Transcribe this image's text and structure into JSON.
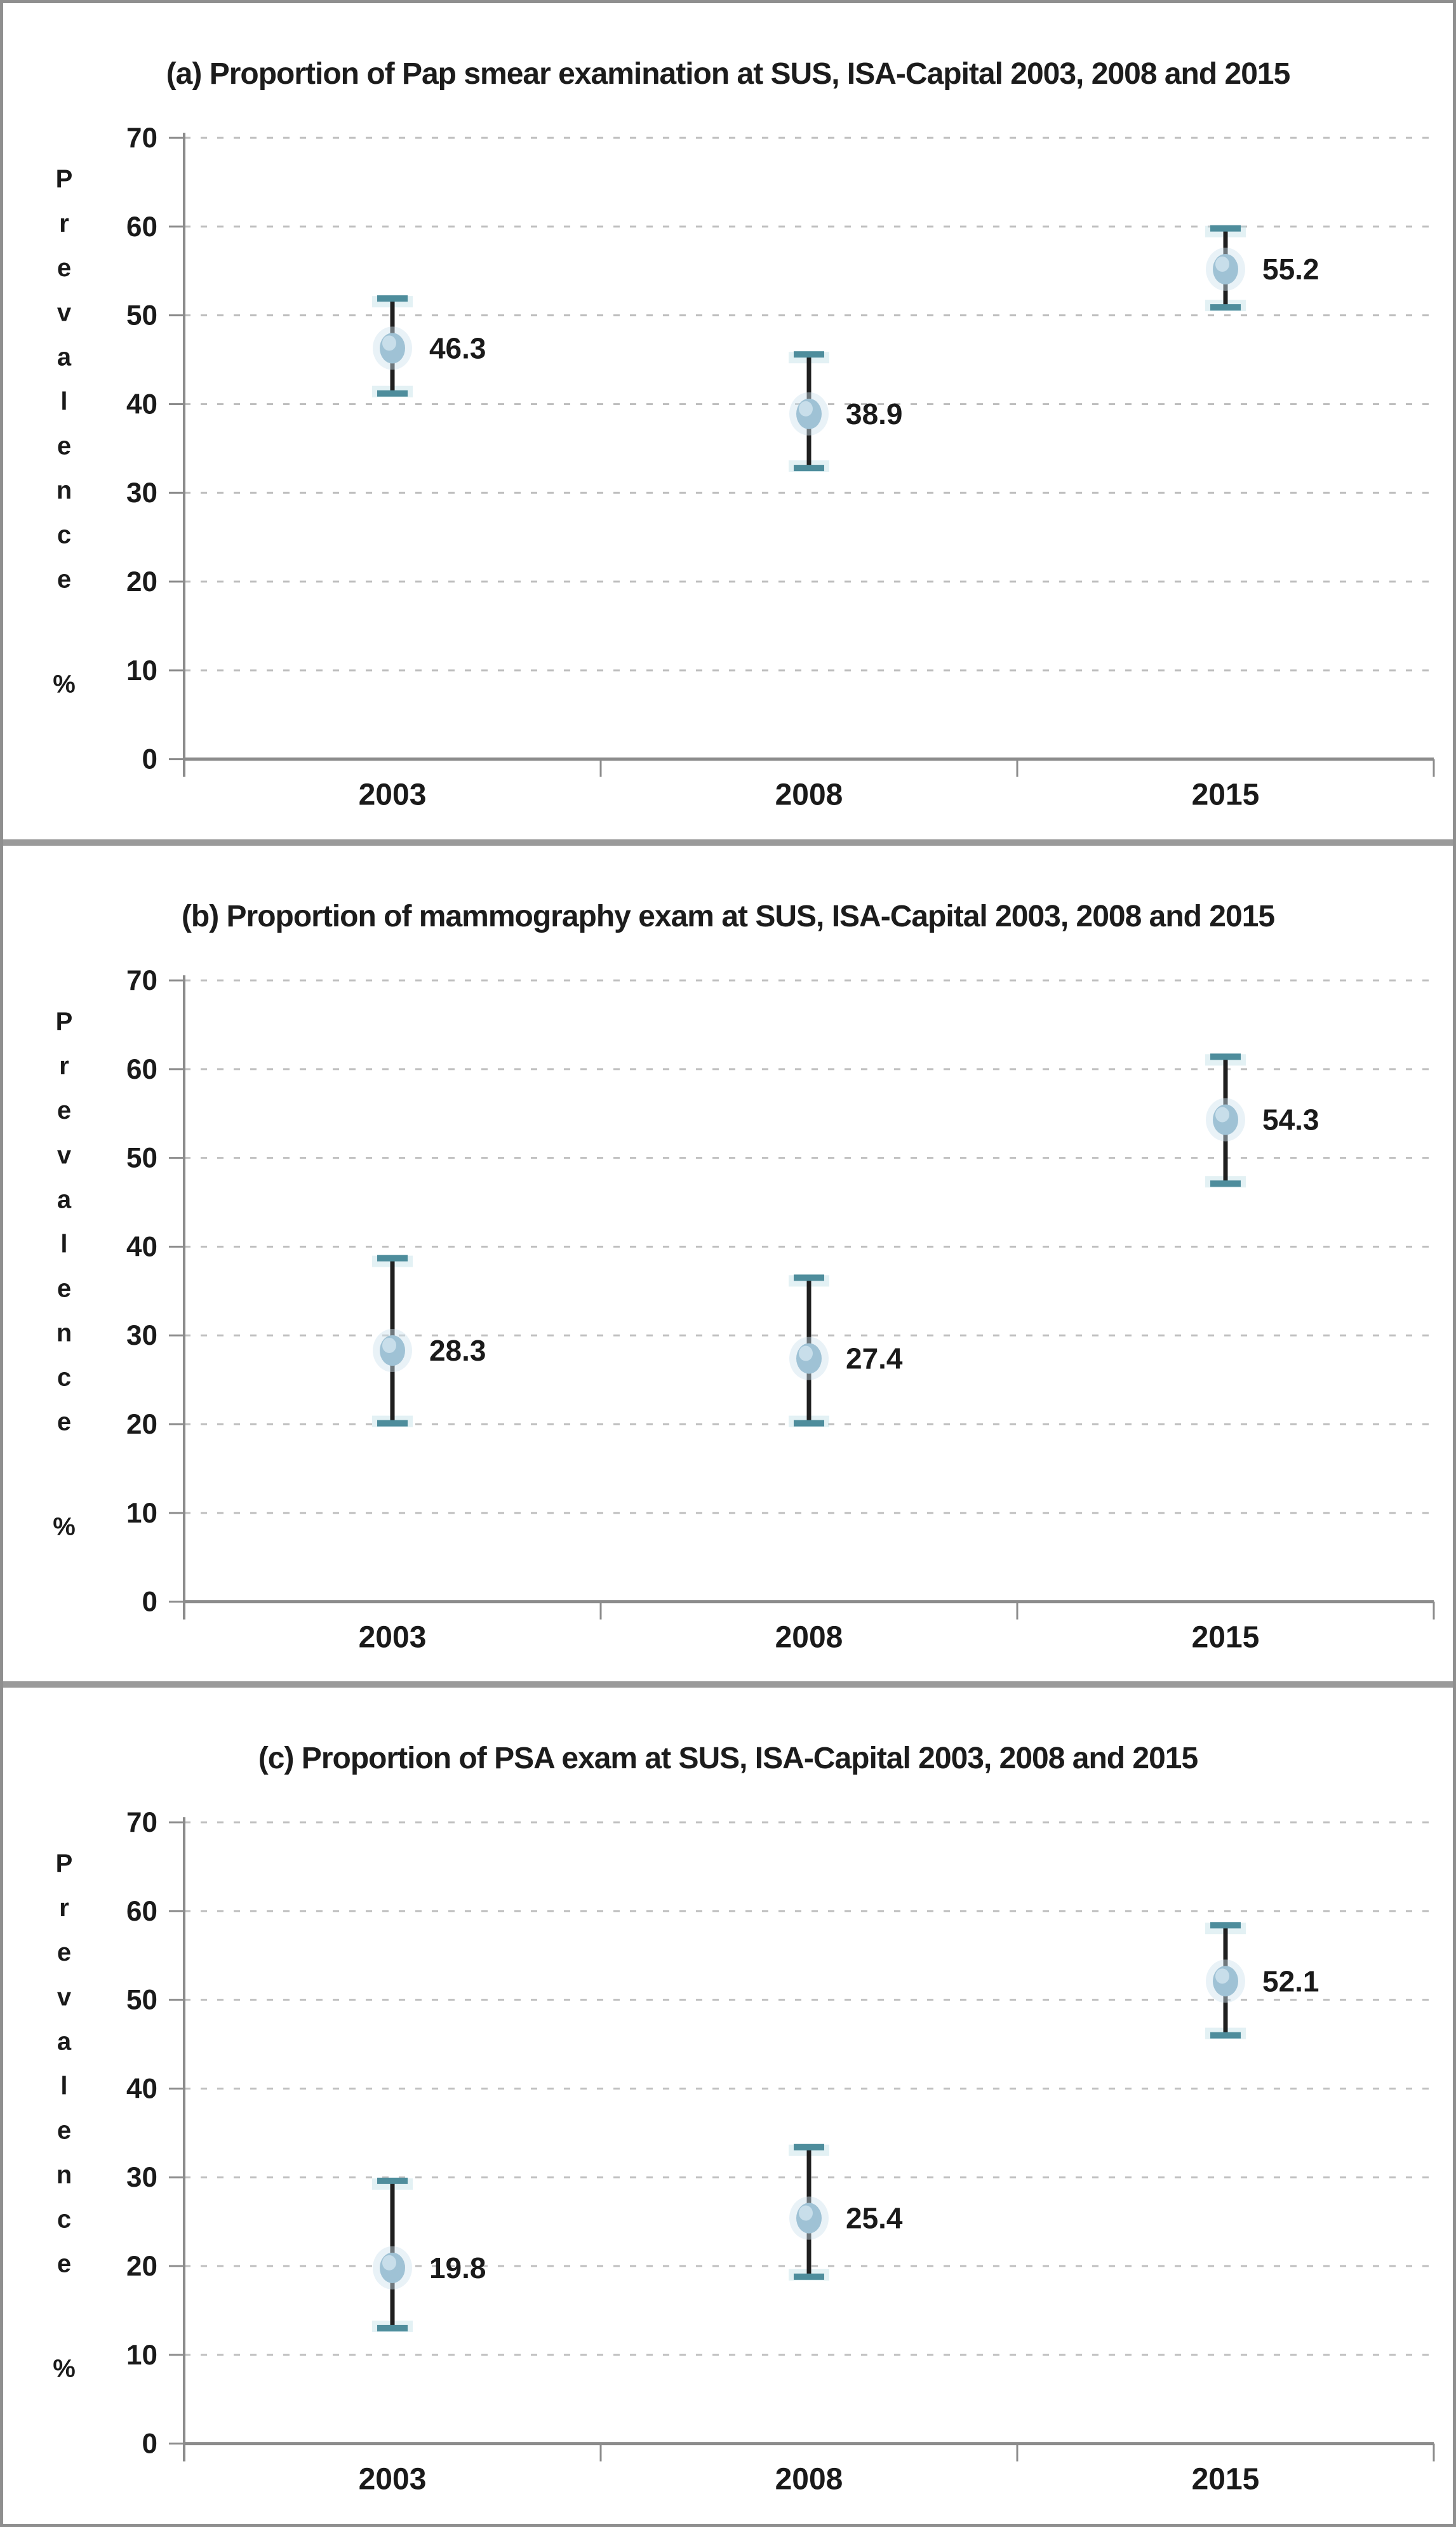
{
  "figure": {
    "ylabel_letters": [
      "P",
      "r",
      "e",
      "v",
      "a",
      "l",
      "e",
      "n",
      "c",
      "e"
    ],
    "ylabel_suffix": "%"
  },
  "colors": {
    "marker_fill": "#9fc2d5",
    "marker_highlight": "#cfe3ed",
    "marker_halo": "#cfe3ed",
    "error_cap": "#4e8d9c",
    "cap_halo": "#b8dbe4",
    "error_line": "#1f1f1f",
    "gridline": "#bfbfbf",
    "axis": "#8c8c8c",
    "text": "#1a1a1a"
  },
  "chart_data": [
    {
      "type": "scatter",
      "title": "(a) Proportion of Pap smear examination at SUS, ISA-Capital 2003, 2008 and 2015",
      "categories": [
        "2003",
        "2008",
        "2015"
      ],
      "values": [
        46.3,
        38.9,
        55.2
      ],
      "ci_low": [
        41.2,
        32.8,
        50.9
      ],
      "ci_high": [
        51.9,
        45.6,
        59.8
      ],
      "value_labels": [
        "46.3",
        "38.9",
        "55.2"
      ],
      "ylabel": "Prevalence %",
      "ylim": [
        0,
        70
      ],
      "yticks": [
        0,
        10,
        20,
        30,
        40,
        50,
        60,
        70
      ],
      "grid": "horizontal-dashed",
      "legend": "none"
    },
    {
      "type": "scatter",
      "title": "(b) Proportion of mammography exam at SUS, ISA-Capital 2003, 2008 and 2015",
      "categories": [
        "2003",
        "2008",
        "2015"
      ],
      "values": [
        28.3,
        27.4,
        54.3
      ],
      "ci_low": [
        20.1,
        20.1,
        47.1
      ],
      "ci_high": [
        38.7,
        36.5,
        61.4
      ],
      "value_labels": [
        "28.3",
        "27.4",
        "54.3"
      ],
      "ylabel": "Prevalence %",
      "ylim": [
        0,
        70
      ],
      "yticks": [
        0,
        10,
        20,
        30,
        40,
        50,
        60,
        70
      ],
      "grid": "horizontal-dashed",
      "legend": "none"
    },
    {
      "type": "scatter",
      "title": "(c) Proportion of PSA exam at SUS, ISA-Capital 2003, 2008 and 2015",
      "categories": [
        "2003",
        "2008",
        "2015"
      ],
      "values": [
        19.8,
        25.4,
        52.1
      ],
      "ci_low": [
        13.0,
        18.8,
        46.0
      ],
      "ci_high": [
        29.6,
        33.4,
        58.4
      ],
      "value_labels": [
        "19.8",
        "25.4",
        "52.1"
      ],
      "ylabel": "Prevalence %",
      "ylim": [
        0,
        70
      ],
      "yticks": [
        0,
        10,
        20,
        30,
        40,
        50,
        60,
        70
      ],
      "grid": "horizontal-dashed",
      "legend": "none"
    }
  ]
}
